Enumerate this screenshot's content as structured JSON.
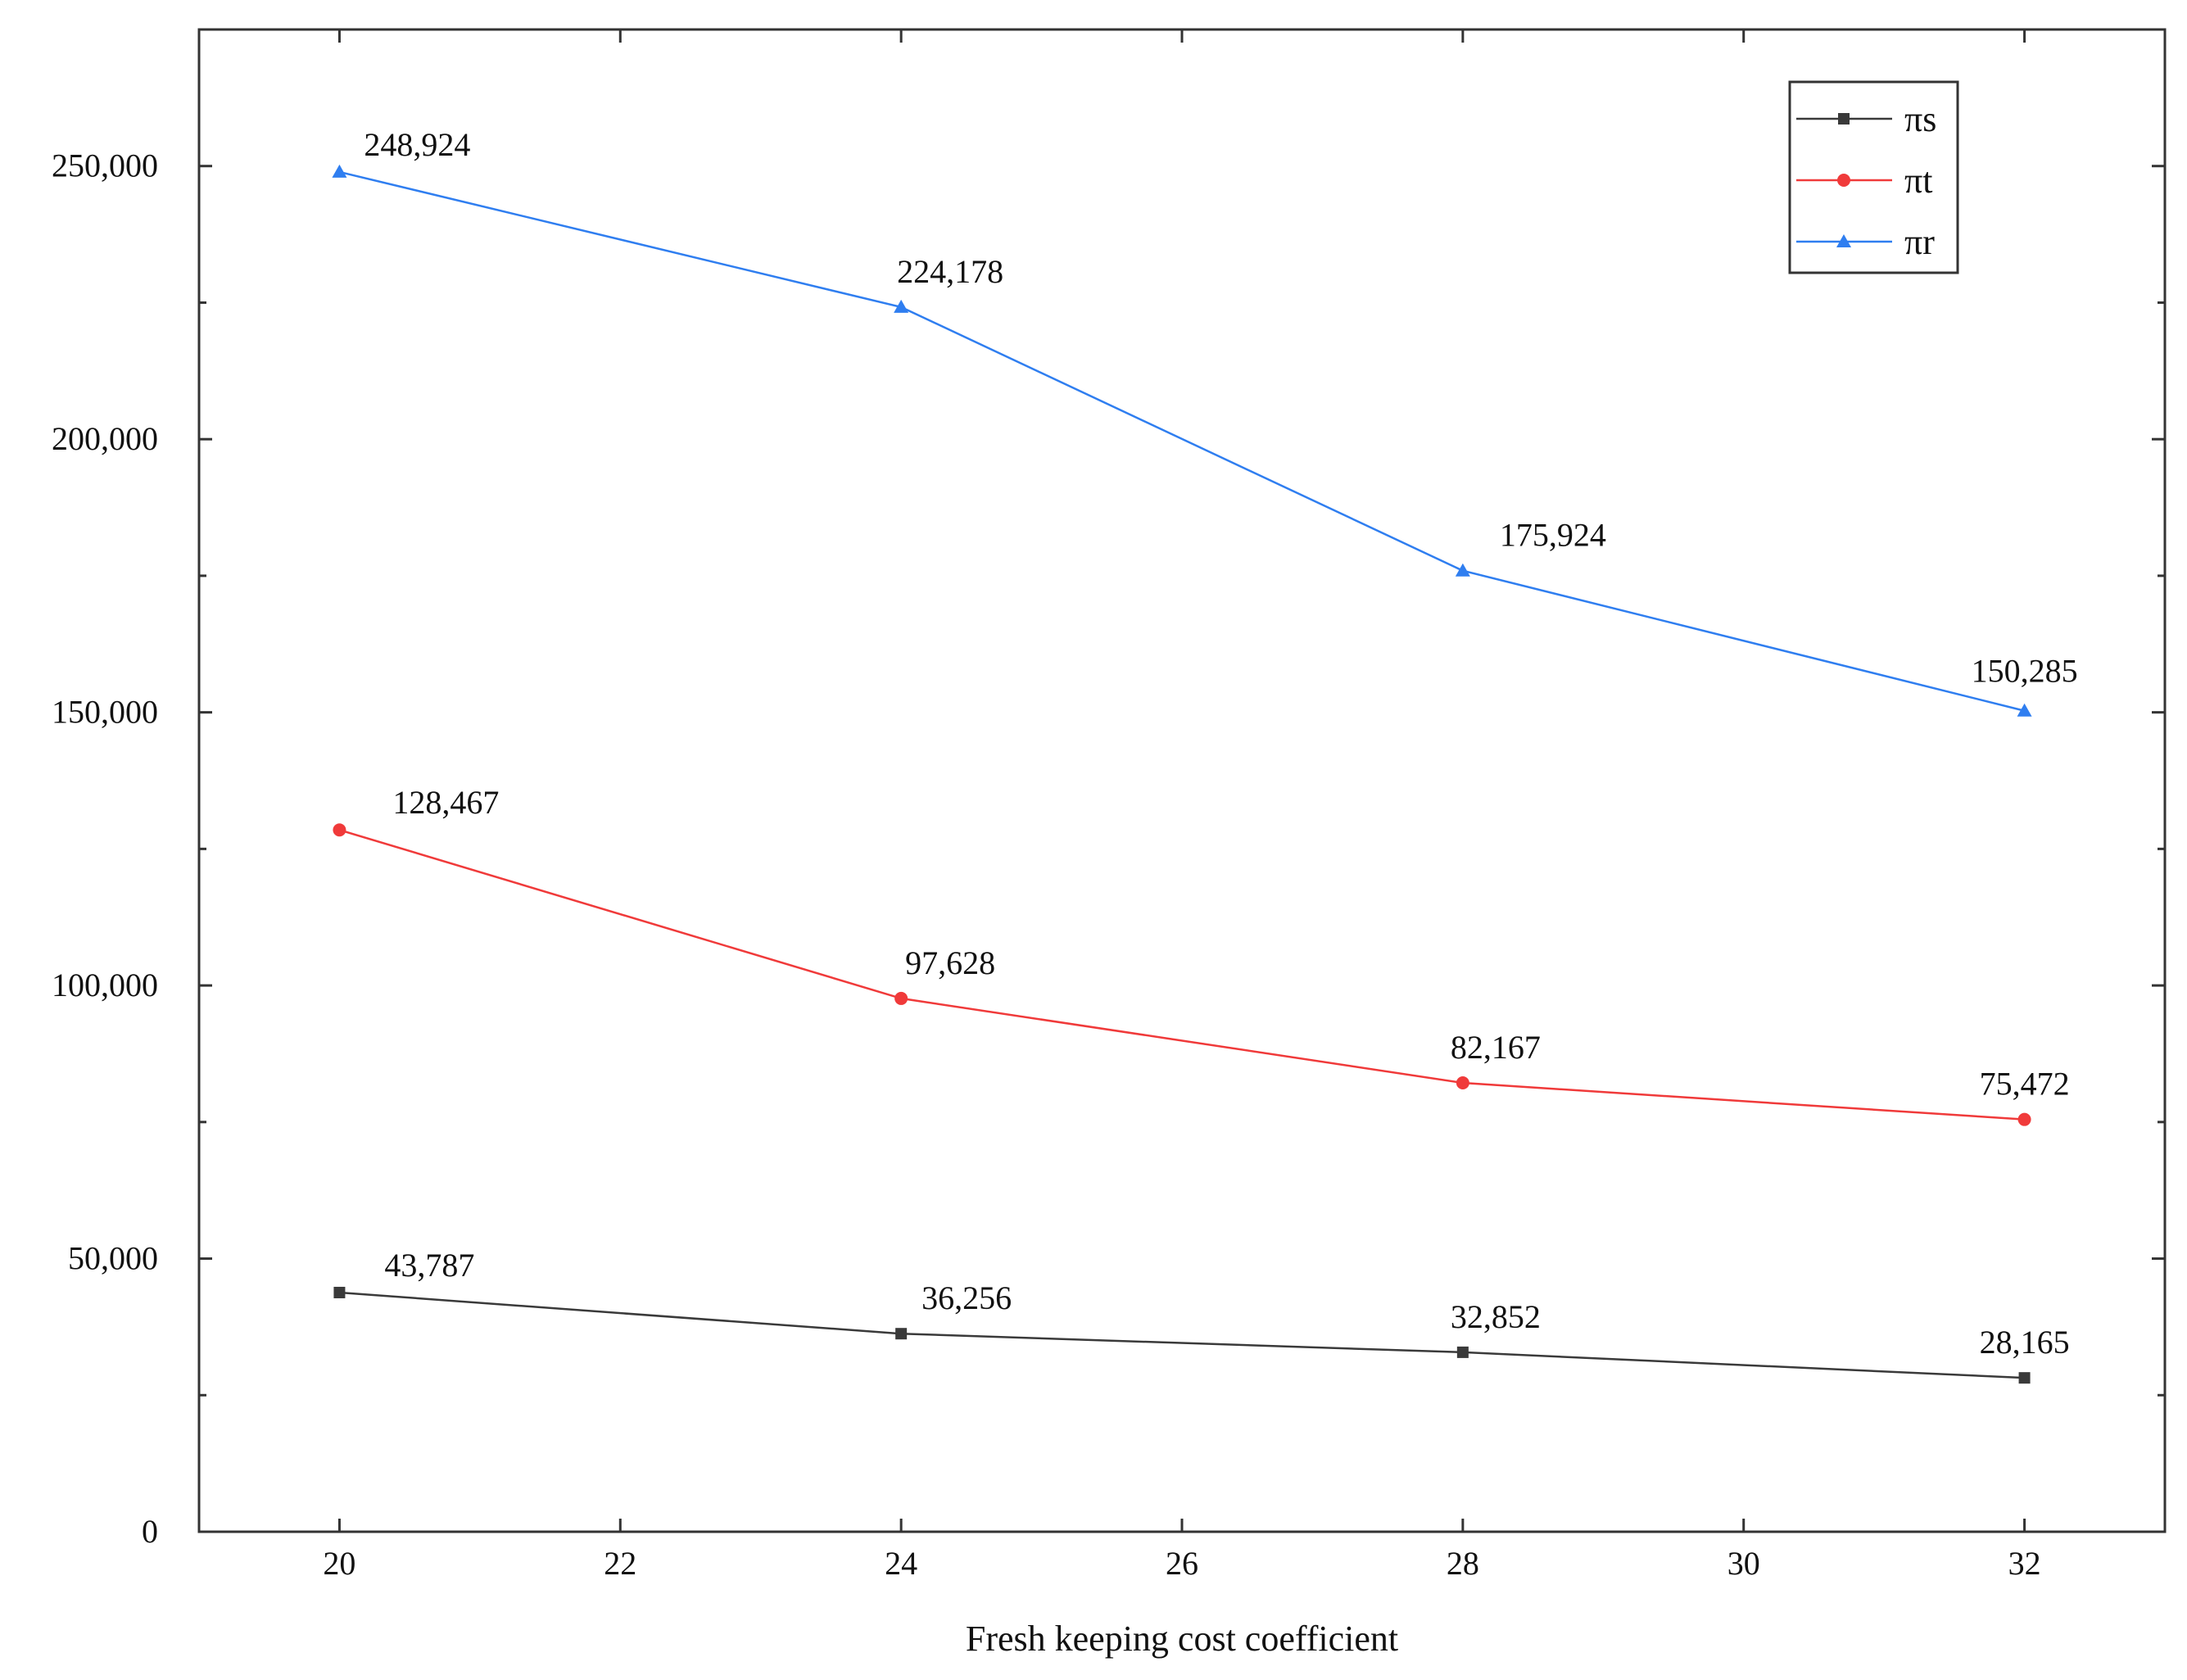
{
  "chart_data": {
    "type": "line",
    "title": "",
    "xlabel": "Fresh keeping cost coefficient",
    "ylabel": "",
    "x": [
      20,
      24,
      28,
      32
    ],
    "xlim": [
      19,
      33
    ],
    "ylim": [
      0,
      275000
    ],
    "xticks": [
      20,
      22,
      24,
      26,
      28,
      30,
      32
    ],
    "xtick_labels": [
      "20",
      "22",
      "24",
      "26",
      "28",
      "30",
      "32"
    ],
    "yticks": [
      0,
      50000,
      100000,
      150000,
      200000,
      250000
    ],
    "ytick_labels": [
      "0",
      "50,000",
      "100,000",
      "150,000",
      "200,000",
      "250,000"
    ],
    "grid": false,
    "legend_position": "top-right",
    "series": [
      {
        "name": "πs",
        "color": "#3a3a3a",
        "marker": "square",
        "values": [
          43787,
          36256,
          32852,
          28165
        ],
        "labels": [
          "43,787",
          "36,256",
          "32,852",
          "28,165"
        ]
      },
      {
        "name": "πt",
        "color": "#f03a3a",
        "marker": "circle",
        "values": [
          128467,
          97628,
          82167,
          75472
        ],
        "labels": [
          "128,467",
          "97,628",
          "82,167",
          "75,472"
        ]
      },
      {
        "name": "πr",
        "color": "#2f7ef0",
        "marker": "triangle",
        "values": [
          248924,
          224178,
          175924,
          150285
        ],
        "labels": [
          "248,924",
          "224,178",
          "175,924",
          "150,285"
        ]
      }
    ]
  }
}
